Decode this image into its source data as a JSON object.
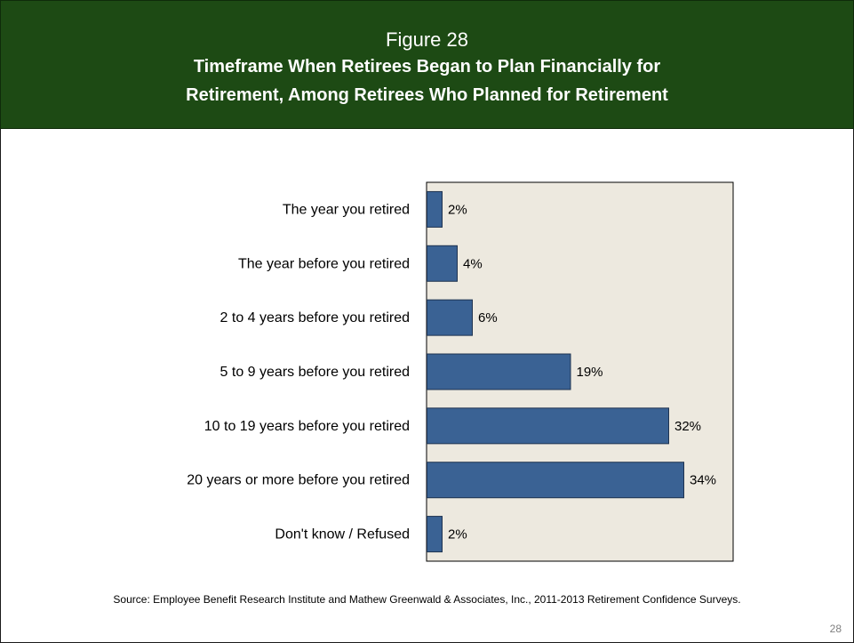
{
  "header": {
    "figure_label": "Figure 28",
    "title_line1": "Timeframe When Retirees Began to Plan Financially for",
    "title_line2": "Retirement, Among Retirees Who Planned for Retirement",
    "background_color": "#1d4a14"
  },
  "chart_data": {
    "type": "bar",
    "orientation": "horizontal",
    "categories": [
      "The year you retired",
      "The year before you retired",
      "2 to 4 years before you retired",
      "5 to 9 years before you retired",
      "10 to 19 years before you retired",
      "20 years or more before you retired",
      "Don't know / Refused"
    ],
    "values": [
      2,
      4,
      6,
      19,
      32,
      34,
      2
    ],
    "value_labels": [
      "2%",
      "4%",
      "6%",
      "19%",
      "32%",
      "34%",
      "2%"
    ],
    "bar_color": "#3a6294",
    "plot_background": "#ede9df",
    "xlim": [
      0,
      40
    ],
    "title": "",
    "xlabel": "",
    "ylabel": "",
    "grid": false
  },
  "footer": {
    "source": "Source:  Employee Benefit Research Institute and Mathew Greenwald & Associates, Inc., 2011-2013 Retirement Confidence Surveys.",
    "page_number": "28"
  }
}
